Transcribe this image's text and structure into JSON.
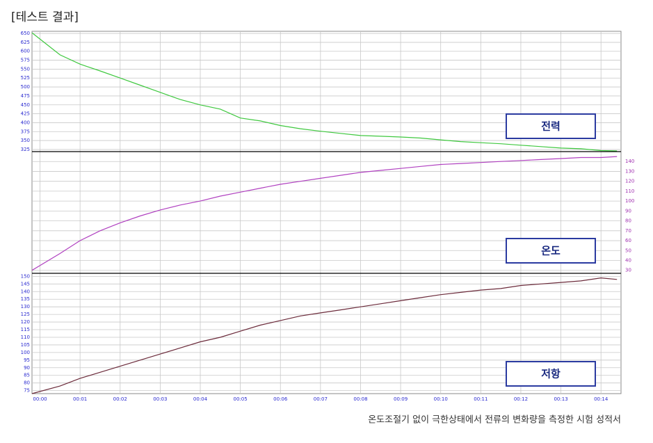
{
  "title": "[테스트 결과]",
  "caption": "온도조절기 없이 극한상태에서 전류의 변화량을 측정한 시험 성적서",
  "chart_data": [
    {
      "type": "line",
      "grid": true,
      "y_axis_side": "left",
      "tick_color": "#2a2ad0",
      "x": [
        -0.2,
        0.5,
        1,
        1.5,
        2,
        2.5,
        3,
        3.5,
        4,
        4.5,
        5,
        5.5,
        6,
        6.5,
        7,
        7.5,
        8,
        8.5,
        9,
        9.5,
        10,
        10.5,
        11,
        11.5,
        12,
        12.5,
        13,
        13.5,
        14,
        14.4
      ],
      "xlim": [
        -0.2,
        14.5
      ],
      "ylim": [
        319,
        656
      ],
      "yticks": [
        325,
        350,
        375,
        400,
        425,
        450,
        475,
        500,
        525,
        550,
        575,
        600,
        625,
        650
      ],
      "series": [
        {
          "name": "전력",
          "color": "#3ec83e",
          "values": [
            652,
            590,
            564,
            545,
            525,
            505,
            485,
            465,
            450,
            438,
            413,
            405,
            392,
            383,
            376,
            370,
            364,
            362,
            360,
            357,
            352,
            347,
            344,
            341,
            337,
            333,
            329,
            327,
            322,
            321
          ]
        }
      ]
    },
    {
      "type": "line",
      "grid": true,
      "y_axis_side": "right",
      "tick_color": "#a030b0",
      "x": [
        -0.2,
        0.5,
        1,
        1.5,
        2,
        2.5,
        3,
        3.5,
        4,
        4.5,
        5,
        5.5,
        6,
        6.5,
        7,
        7.5,
        8,
        8.5,
        9,
        9.5,
        10,
        10.5,
        11,
        11.5,
        12,
        12.5,
        13,
        13.5,
        14,
        14.4
      ],
      "xlim": [
        -0.2,
        14.5
      ],
      "ylim": [
        27,
        150
      ],
      "yticks": [
        30,
        40,
        50,
        60,
        70,
        80,
        90,
        100,
        110,
        120,
        130,
        140
      ],
      "series": [
        {
          "name": "온도",
          "color": "#b040c0",
          "values": [
            30,
            47,
            60,
            70,
            78,
            85,
            91,
            96,
            100,
            105,
            109,
            113,
            117,
            120,
            123,
            126,
            129,
            131,
            133,
            135,
            137,
            138,
            139,
            140,
            141,
            142,
            143,
            144,
            144,
            145
          ]
        }
      ]
    },
    {
      "type": "line",
      "grid": true,
      "y_axis_side": "left",
      "tick_color": "#2a2ad0",
      "x": [
        -0.2,
        0.5,
        1,
        1.5,
        2,
        2.5,
        3,
        3.5,
        4,
        4.5,
        5,
        5.5,
        6,
        6.5,
        7,
        7.5,
        8,
        8.5,
        9,
        9.5,
        10,
        10.5,
        11,
        11.5,
        12,
        12.5,
        13,
        13.5,
        14,
        14.4
      ],
      "xlim": [
        -0.2,
        14.5
      ],
      "ylim": [
        73,
        152
      ],
      "yticks": [
        75,
        80,
        85,
        90,
        95,
        100,
        105,
        110,
        115,
        120,
        125,
        130,
        135,
        140,
        145,
        150
      ],
      "xticks": [
        {
          "value": 0,
          "label": "00:00"
        },
        {
          "value": 1,
          "label": "00:01"
        },
        {
          "value": 2,
          "label": "00:02"
        },
        {
          "value": 3,
          "label": "00:03"
        },
        {
          "value": 4,
          "label": "00:04"
        },
        {
          "value": 5,
          "label": "00:05"
        },
        {
          "value": 6,
          "label": "00:06"
        },
        {
          "value": 7,
          "label": "00:07"
        },
        {
          "value": 8,
          "label": "00:08"
        },
        {
          "value": 9,
          "label": "00:09"
        },
        {
          "value": 10,
          "label": "00:10"
        },
        {
          "value": 11,
          "label": "00:11"
        },
        {
          "value": 12,
          "label": "00:12"
        },
        {
          "value": 13,
          "label": "00:13"
        },
        {
          "value": 14,
          "label": "00:14"
        }
      ],
      "series": [
        {
          "name": "저항",
          "color": "#6b2a3a",
          "values": [
            73,
            78,
            83,
            87,
            91,
            95,
            99,
            103,
            107,
            110,
            114,
            118,
            121,
            124,
            126,
            128,
            130,
            132,
            134,
            136,
            138,
            139.5,
            141,
            142,
            144,
            145,
            146,
            147,
            149,
            148
          ]
        }
      ]
    }
  ]
}
